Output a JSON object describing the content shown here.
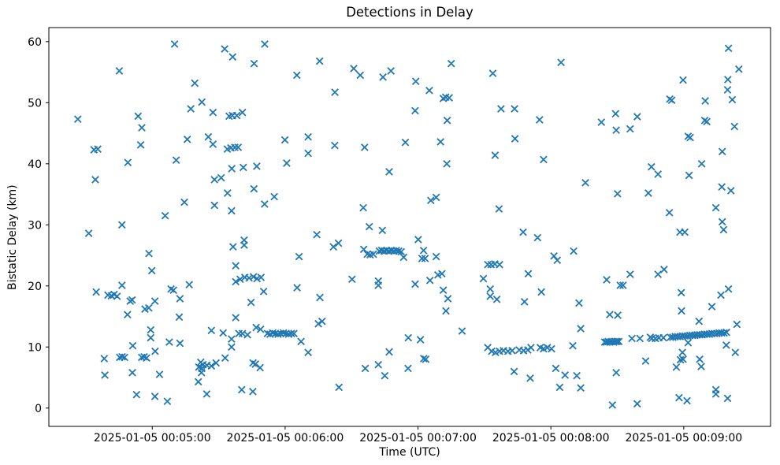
{
  "window": {
    "title": "Detections in Delay"
  },
  "chart_data": {
    "type": "scatter",
    "title": "Detections in Delay",
    "xlabel": "Time (UTC)",
    "ylabel": "Bistatic Delay (km)",
    "marker": "x",
    "marker_color": "#1f77b4",
    "background_color": "#ffffff",
    "grid": false,
    "legend": "none",
    "x_unit": "seconds after 2025-01-05 00:04:00 UTC",
    "xlim": [
      13.3,
      339.2
    ],
    "ylim": [
      -3.0,
      62.3
    ],
    "x_ticks": [
      {
        "t": 60,
        "label": "2025-01-05 00:05:00"
      },
      {
        "t": 120,
        "label": "2025-01-05 00:06:00"
      },
      {
        "t": 180,
        "label": "2025-01-05 00:07:00"
      },
      {
        "t": 240,
        "label": "2025-01-05 00:08:00"
      },
      {
        "t": 300,
        "label": "2025-01-05 00:09:00"
      }
    ],
    "y_ticks": [
      0,
      10,
      20,
      30,
      40,
      50,
      60
    ],
    "points": [
      [
        45.1,
        55.2
      ],
      [
        26.4,
        47.3
      ],
      [
        53.6,
        47.8
      ],
      [
        55.3,
        45.9
      ],
      [
        54.8,
        43.1
      ],
      [
        33.7,
        42.3
      ],
      [
        35.4,
        42.4
      ],
      [
        49.0,
        40.2
      ],
      [
        34.3,
        37.4
      ],
      [
        65.8,
        31.5
      ],
      [
        46.3,
        30.0
      ],
      [
        31.3,
        28.6
      ],
      [
        58.5,
        25.3
      ],
      [
        59.8,
        22.5
      ],
      [
        34.7,
        19.0
      ],
      [
        46.3,
        20.1
      ],
      [
        40.0,
        18.5
      ],
      [
        41.5,
        18.4
      ],
      [
        42.8,
        18.6
      ],
      [
        44.1,
        18.3
      ],
      [
        50.0,
        17.5
      ],
      [
        50.9,
        17.7
      ],
      [
        61.2,
        17.5
      ],
      [
        56.7,
        16.2
      ],
      [
        58.4,
        16.4
      ],
      [
        48.8,
        15.3
      ],
      [
        59.3,
        12.8
      ],
      [
        59.3,
        11.5
      ],
      [
        51.2,
        10.2
      ],
      [
        61.3,
        9.3
      ],
      [
        38.3,
        8.1
      ],
      [
        45.3,
        8.3
      ],
      [
        46.4,
        8.4
      ],
      [
        47.5,
        8.3
      ],
      [
        55.2,
        8.3
      ],
      [
        56.3,
        8.4
      ],
      [
        57.4,
        8.2
      ],
      [
        38.6,
        5.4
      ],
      [
        51.0,
        5.8
      ],
      [
        63.3,
        5.5
      ],
      [
        52.9,
        2.2
      ],
      [
        61.2,
        1.9
      ],
      [
        66.8,
        1.1
      ],
      [
        70.1,
        59.6
      ],
      [
        110.8,
        59.6
      ],
      [
        92.7,
        58.8
      ],
      [
        96.3,
        57.5
      ],
      [
        106.0,
        56.4
      ],
      [
        79.2,
        53.2
      ],
      [
        82.4,
        50.1
      ],
      [
        77.4,
        49.0
      ],
      [
        87.4,
        48.4
      ],
      [
        94.7,
        47.8
      ],
      [
        96.2,
        47.9
      ],
      [
        98.2,
        47.9
      ],
      [
        100.7,
        48.4
      ],
      [
        75.8,
        44.0
      ],
      [
        85.3,
        44.4
      ],
      [
        87.4,
        43.2
      ],
      [
        93.9,
        42.4
      ],
      [
        95.5,
        42.6
      ],
      [
        97.3,
        42.7
      ],
      [
        98.8,
        42.7
      ],
      [
        119.9,
        43.9
      ],
      [
        70.8,
        40.6
      ],
      [
        120.7,
        40.1
      ],
      [
        95.9,
        39.2
      ],
      [
        101.1,
        39.4
      ],
      [
        107.2,
        39.6
      ],
      [
        88.1,
        37.4
      ],
      [
        91.1,
        37.7
      ],
      [
        94.0,
        35.2
      ],
      [
        105.9,
        35.9
      ],
      [
        74.5,
        33.7
      ],
      [
        88.1,
        33.2
      ],
      [
        95.8,
        32.3
      ],
      [
        110.7,
        33.4
      ],
      [
        115.1,
        34.6
      ],
      [
        96.5,
        26.4
      ],
      [
        101.5,
        27.5
      ],
      [
        101.5,
        26.7
      ],
      [
        97.7,
        23.3
      ],
      [
        97.7,
        20.7
      ],
      [
        99.7,
        21.1
      ],
      [
        101.8,
        21.4
      ],
      [
        103.7,
        21.3
      ],
      [
        105.7,
        21.5
      ],
      [
        107.3,
        21.2
      ],
      [
        109.1,
        21.4
      ],
      [
        68.5,
        19.5
      ],
      [
        69.6,
        19.3
      ],
      [
        76.7,
        20.2
      ],
      [
        72.5,
        17.9
      ],
      [
        110.3,
        19.1
      ],
      [
        104.6,
        17.3
      ],
      [
        72.2,
        14.9
      ],
      [
        97.7,
        14.8
      ],
      [
        86.7,
        12.7
      ],
      [
        92.0,
        12.3
      ],
      [
        95.8,
        11.3
      ],
      [
        99.1,
        12.2
      ],
      [
        100.7,
        12.2
      ],
      [
        103.0,
        12.0
      ],
      [
        106.9,
        13.2
      ],
      [
        108.9,
        12.9
      ],
      [
        112.0,
        12.2
      ],
      [
        113.2,
        12.1
      ],
      [
        114.4,
        12.3
      ],
      [
        115.6,
        12.2
      ],
      [
        116.8,
        12.1
      ],
      [
        118.0,
        12.2
      ],
      [
        119.2,
        12.3
      ],
      [
        120.4,
        12.2
      ],
      [
        121.6,
        12.1
      ],
      [
        122.8,
        12.2
      ],
      [
        124.0,
        12.2
      ],
      [
        95.8,
        10.0
      ],
      [
        67.7,
        10.8
      ],
      [
        72.5,
        10.6
      ],
      [
        92.9,
        8.2
      ],
      [
        88.8,
        7.4
      ],
      [
        86.7,
        6.9
      ],
      [
        84.7,
        7.0
      ],
      [
        82.9,
        7.1
      ],
      [
        81.9,
        7.5
      ],
      [
        81.0,
        6.7
      ],
      [
        82.4,
        6.5
      ],
      [
        82.2,
        5.8
      ],
      [
        80.8,
        4.3
      ],
      [
        84.6,
        2.3
      ],
      [
        100.4,
        3.0
      ],
      [
        105.4,
        2.7
      ],
      [
        105.5,
        7.4
      ],
      [
        106.6,
        7.2
      ],
      [
        108.7,
        6.6
      ],
      [
        135.6,
        56.8
      ],
      [
        125.3,
        54.5
      ],
      [
        151.0,
        55.6
      ],
      [
        153.9,
        54.5
      ],
      [
        164.2,
        54.2
      ],
      [
        167.8,
        55.2
      ],
      [
        142.5,
        51.7
      ],
      [
        130.4,
        44.4
      ],
      [
        130.4,
        41.7
      ],
      [
        142.4,
        43.0
      ],
      [
        155.9,
        42.7
      ],
      [
        174.3,
        43.5
      ],
      [
        167.0,
        38.7
      ],
      [
        155.3,
        32.8
      ],
      [
        158.0,
        29.7
      ],
      [
        163.9,
        29.1
      ],
      [
        134.3,
        28.4
      ],
      [
        141.8,
        26.4
      ],
      [
        144.1,
        27.0
      ],
      [
        126.3,
        24.8
      ],
      [
        155.5,
        26.0
      ],
      [
        157.1,
        25.2
      ],
      [
        158.4,
        25.1
      ],
      [
        159.8,
        25.2
      ],
      [
        162.5,
        25.7
      ],
      [
        163.6,
        25.8
      ],
      [
        164.7,
        25.7
      ],
      [
        165.8,
        25.8
      ],
      [
        166.9,
        25.7
      ],
      [
        168.0,
        25.8
      ],
      [
        169.1,
        25.7
      ],
      [
        170.2,
        25.8
      ],
      [
        171.3,
        25.7
      ],
      [
        172.4,
        25.6
      ],
      [
        173.5,
        24.7
      ],
      [
        150.2,
        21.1
      ],
      [
        162.1,
        20.8
      ],
      [
        162.1,
        20.1
      ],
      [
        125.4,
        19.7
      ],
      [
        135.7,
        18.1
      ],
      [
        135.0,
        13.8
      ],
      [
        136.7,
        14.2
      ],
      [
        127.2,
        10.9
      ],
      [
        130.4,
        9.1
      ],
      [
        167.0,
        9.2
      ],
      [
        156.2,
        6.5
      ],
      [
        162.1,
        7.1
      ],
      [
        165.0,
        5.3
      ],
      [
        144.3,
        3.4
      ],
      [
        195.0,
        56.4
      ],
      [
        213.8,
        54.8
      ],
      [
        179.0,
        53.5
      ],
      [
        185.1,
        52.0
      ],
      [
        191.4,
        50.7
      ],
      [
        192.5,
        50.9
      ],
      [
        194.1,
        50.8
      ],
      [
        178.7,
        48.7
      ],
      [
        217.5,
        49.0
      ],
      [
        223.6,
        49.0
      ],
      [
        193.2,
        47.1
      ],
      [
        223.8,
        44.1
      ],
      [
        190.2,
        43.6
      ],
      [
        214.8,
        41.4
      ],
      [
        193.0,
        40.0
      ],
      [
        185.8,
        34.0
      ],
      [
        188.2,
        34.5
      ],
      [
        216.6,
        32.6
      ],
      [
        227.5,
        28.8
      ],
      [
        180.1,
        27.6
      ],
      [
        182.5,
        25.8
      ],
      [
        181.8,
        24.5
      ],
      [
        183.2,
        24.5
      ],
      [
        188.2,
        24.8
      ],
      [
        211.5,
        23.5
      ],
      [
        213.0,
        23.5
      ],
      [
        214.7,
        23.6
      ],
      [
        216.8,
        23.5
      ],
      [
        229.8,
        22.0
      ],
      [
        209.5,
        21.2
      ],
      [
        178.7,
        20.3
      ],
      [
        185.4,
        20.9
      ],
      [
        189.0,
        21.8
      ],
      [
        190.8,
        22.0
      ],
      [
        191.4,
        19.3
      ],
      [
        193.5,
        17.9
      ],
      [
        212.6,
        19.5
      ],
      [
        212.6,
        18.3
      ],
      [
        215.6,
        17.8
      ],
      [
        192.6,
        15.9
      ],
      [
        228.1,
        17.4
      ],
      [
        199.9,
        12.6
      ],
      [
        175.6,
        11.5
      ],
      [
        181.1,
        11.2
      ],
      [
        182.6,
        8.1
      ],
      [
        183.5,
        8.0
      ],
      [
        175.5,
        6.5
      ],
      [
        211.5,
        9.9
      ],
      [
        213.3,
        9.3
      ],
      [
        215.0,
        9.1
      ],
      [
        216.8,
        9.3
      ],
      [
        218.6,
        9.4
      ],
      [
        220.6,
        9.3
      ],
      [
        222.5,
        9.4
      ],
      [
        225.7,
        9.5
      ],
      [
        227.7,
        9.4
      ],
      [
        229.6,
        9.5
      ],
      [
        223.4,
        6.0
      ],
      [
        230.7,
        4.9
      ],
      [
        244.6,
        56.6
      ],
      [
        234.9,
        47.2
      ],
      [
        262.8,
        46.8
      ],
      [
        269.2,
        48.2
      ],
      [
        279.0,
        47.7
      ],
      [
        269.5,
        45.5
      ],
      [
        275.8,
        45.7
      ],
      [
        236.7,
        40.7
      ],
      [
        255.6,
        36.9
      ],
      [
        270.1,
        35.1
      ],
      [
        284.0,
        35.2
      ],
      [
        234.0,
        27.9
      ],
      [
        241.4,
        24.9
      ],
      [
        242.9,
        24.2
      ],
      [
        250.3,
        25.7
      ],
      [
        235.7,
        19.0
      ],
      [
        252.7,
        17.2
      ],
      [
        265.2,
        21.0
      ],
      [
        271.3,
        20.1
      ],
      [
        272.6,
        20.1
      ],
      [
        275.8,
        21.9
      ],
      [
        266.6,
        15.3
      ],
      [
        270.2,
        15.2
      ],
      [
        253.5,
        13.0
      ],
      [
        264.3,
        10.8
      ],
      [
        265.1,
        10.8
      ],
      [
        265.9,
        10.9
      ],
      [
        266.7,
        10.8
      ],
      [
        267.5,
        10.9
      ],
      [
        268.3,
        10.8
      ],
      [
        269.1,
        10.9
      ],
      [
        269.9,
        10.9
      ],
      [
        270.7,
        10.9
      ],
      [
        276.6,
        11.4
      ],
      [
        280.2,
        11.4
      ],
      [
        284.9,
        11.6
      ],
      [
        231.0,
        9.9
      ],
      [
        235.2,
        9.9
      ],
      [
        236.7,
        9.7
      ],
      [
        238.4,
        9.9
      ],
      [
        240.3,
        9.7
      ],
      [
        249.9,
        10.2
      ],
      [
        242.2,
        6.5
      ],
      [
        246.4,
        5.4
      ],
      [
        251.7,
        5.3
      ],
      [
        244.0,
        3.4
      ],
      [
        253.5,
        3.3
      ],
      [
        269.5,
        5.8
      ],
      [
        267.8,
        0.5
      ],
      [
        279.0,
        0.7
      ],
      [
        282.8,
        7.7
      ],
      [
        320.2,
        58.9
      ],
      [
        324.9,
        55.5
      ],
      [
        299.7,
        53.7
      ],
      [
        319.9,
        53.8
      ],
      [
        319.8,
        52.1
      ],
      [
        293.7,
        50.6
      ],
      [
        294.6,
        50.4
      ],
      [
        309.7,
        50.3
      ],
      [
        321.9,
        50.5
      ],
      [
        309.5,
        47.1
      ],
      [
        310.4,
        46.9
      ],
      [
        322.9,
        46.1
      ],
      [
        302.0,
        44.5
      ],
      [
        302.9,
        44.3
      ],
      [
        317.4,
        42.0
      ],
      [
        285.4,
        39.5
      ],
      [
        288.4,
        38.3
      ],
      [
        308.1,
        40.0
      ],
      [
        302.4,
        38.1
      ],
      [
        317.2,
        36.2
      ],
      [
        321.3,
        35.6
      ],
      [
        293.5,
        32.0
      ],
      [
        314.5,
        32.8
      ],
      [
        298.3,
        28.8
      ],
      [
        300.5,
        28.8
      ],
      [
        317.4,
        30.5
      ],
      [
        318.0,
        29.2
      ],
      [
        291.1,
        22.7
      ],
      [
        288.4,
        21.9
      ],
      [
        298.9,
        18.9
      ],
      [
        316.8,
        18.5
      ],
      [
        320.2,
        19.5
      ],
      [
        312.7,
        16.6
      ],
      [
        299.0,
        15.9
      ],
      [
        306.9,
        14.2
      ],
      [
        324.0,
        13.7
      ],
      [
        285.6,
        11.4
      ],
      [
        287.2,
        11.4
      ],
      [
        288.8,
        11.5
      ],
      [
        290.8,
        11.5
      ],
      [
        294.0,
        11.6
      ],
      [
        295.1,
        11.6
      ],
      [
        296.2,
        11.7
      ],
      [
        297.3,
        11.7
      ],
      [
        298.4,
        11.7
      ],
      [
        299.5,
        11.8
      ],
      [
        300.6,
        11.8
      ],
      [
        301.7,
        11.8
      ],
      [
        302.8,
        11.9
      ],
      [
        303.9,
        11.9
      ],
      [
        305.0,
        11.9
      ],
      [
        306.1,
        12.0
      ],
      [
        307.2,
        12.0
      ],
      [
        308.3,
        12.0
      ],
      [
        309.4,
        12.1
      ],
      [
        310.5,
        12.1
      ],
      [
        311.6,
        12.1
      ],
      [
        312.7,
        12.2
      ],
      [
        313.8,
        12.2
      ],
      [
        314.9,
        12.2
      ],
      [
        316.0,
        12.3
      ],
      [
        317.1,
        12.3
      ],
      [
        318.2,
        12.3
      ],
      [
        319.3,
        12.4
      ],
      [
        302.0,
        10.7
      ],
      [
        319.2,
        10.3
      ],
      [
        323.3,
        9.1
      ],
      [
        299.4,
        9.1
      ],
      [
        298.5,
        7.9
      ],
      [
        299.7,
        8.0
      ],
      [
        296.7,
        6.7
      ],
      [
        307.2,
        8.0
      ],
      [
        307.9,
        6.8
      ],
      [
        314.5,
        3.0
      ],
      [
        314.5,
        2.3
      ],
      [
        297.9,
        1.7
      ],
      [
        301.5,
        1.2
      ],
      [
        319.8,
        1.6
      ]
    ]
  }
}
